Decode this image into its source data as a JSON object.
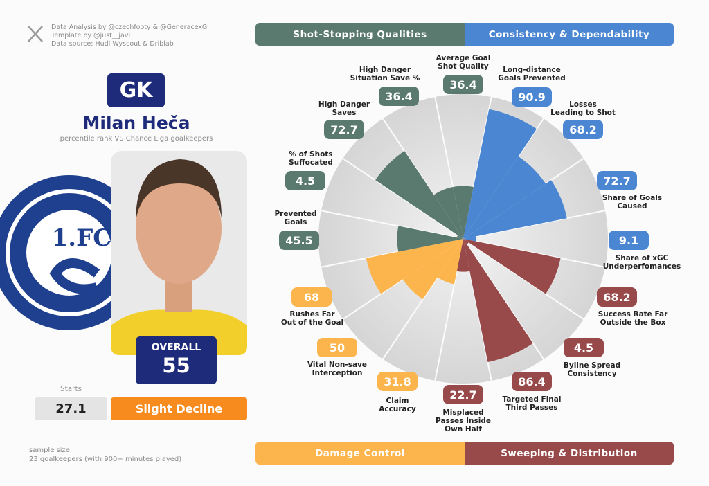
{
  "header": {
    "credits": [
      "Data Analysis by @czechfooty & @GeneracexG",
      "Template by @just__javi",
      "Data source: Hudl Wyscout & Driblab"
    ]
  },
  "player": {
    "position": "GK",
    "name": "Milan Heča",
    "subtitle": "percentile rank VS Chance Liga goalkeepers",
    "overall_label": "OVERALL",
    "overall": 55,
    "starts_label": "Starts",
    "starts": 27.1,
    "trend": "Slight Decline",
    "crest_text": "1.FC"
  },
  "footer": {
    "sample": [
      "sample size:",
      "23 goalkeepers (with 900+ minutes played)"
    ]
  },
  "chart_data": {
    "type": "pizza",
    "legend": [
      {
        "name": "Shot-Stopping Qualities",
        "color": "#5b7a6f"
      },
      {
        "name": "Consistency & Dependability",
        "color": "#4a86d1"
      },
      {
        "name": "Damage Control",
        "color": "#fbb54c"
      },
      {
        "name": "Sweeping & Distribution",
        "color": "#984a4a"
      }
    ],
    "categories": [
      "Average Goal\nShot Quality",
      "Long-distance\nGoals Prevented",
      "Losses\nLeading to Shot",
      "Share of Goals\nCaused",
      "Share of xGC\nUnderperfomances",
      "Success Rate Far\nOutside the Box",
      "Byline Spread\nConsistency",
      "Targeted Final\nThird Passes",
      "Misplaced\nPasses Inside\nOwn Half",
      "Claim\nAccuracy",
      "Vital Non-save\nInterception",
      "Rushes Far\nOut of the Goal",
      "Prevented\nGoals",
      "% of Shots\nSuffocated",
      "High Danger\nSaves",
      "High Danger\nSituation Save %"
    ],
    "values": [
      36.4,
      90.9,
      68.2,
      72.7,
      9.1,
      68.2,
      4.5,
      86.4,
      22.7,
      31.8,
      50,
      68,
      45.5,
      4.5,
      72.7,
      36.4
    ],
    "colors": [
      "#5b7a6f",
      "#4a86d1",
      "#4a86d1",
      "#4a86d1",
      "#4a86d1",
      "#984a4a",
      "#984a4a",
      "#984a4a",
      "#984a4a",
      "#fbb54c",
      "#fbb54c",
      "#fbb54c",
      "#5b7a6f",
      "#5b7a6f",
      "#5b7a6f",
      "#5b7a6f"
    ],
    "rlim": [
      0,
      100
    ]
  }
}
